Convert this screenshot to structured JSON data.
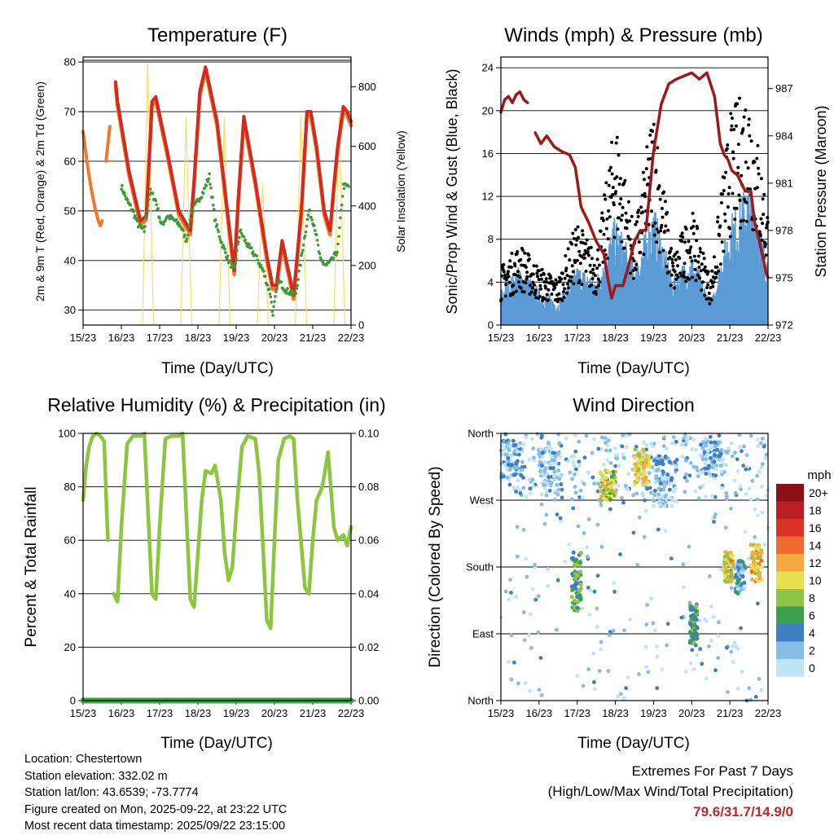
{
  "panels": {
    "temperature": {
      "title": "Temperature (F)",
      "ylabel": "2m & 9m T (Red, Orange) & 2m Td (Green)",
      "y2label": "Solar Insolation (Yellow)",
      "xlabel": "Time (Day/UTC)"
    },
    "winds": {
      "title": "Winds (mph) & Pressure (mb)",
      "ylabel": "Sonic/Prop Wind & Gust (Blue, Black)",
      "y2label": "Station Pressure (Maroon)",
      "xlabel": "Time (Day/UTC)"
    },
    "humidity": {
      "title": "Relative Humidity (%) & Precipitation (in)",
      "ylabel": "Percent & Total Rainfall",
      "xlabel": "Time (Day/UTC)"
    },
    "direction": {
      "title": "Wind Direction",
      "ylabel": "Direction (Colored By Speed)",
      "xlabel": "Time (Day/UTC)",
      "legend_title": "mph"
    }
  },
  "colors": {
    "t2m": "#d42a1e",
    "t9m": "#f07a2c",
    "dewpoint": "#3a9a35",
    "solar": "#f7dc6a",
    "wind": "#5b9bd5",
    "gust": "#000000",
    "pressure": "#9c1a1a",
    "rh": "#8cc63f",
    "precip": "#3aa23a"
  },
  "info": {
    "location": "Location: Chestertown",
    "elevation": "Station elevation: 332.02 m",
    "latlon": "Station lat/lon: 43.6539; -73.7774",
    "created": "Figure created on Mon, 2025-09-22, at 23:22 UTC",
    "timestamp": "Most recent data timestamp: 2025/09/22 23:15:00"
  },
  "extremes": {
    "title": "Extremes For Past 7 Days",
    "subtitle": "(High/Low/Max Wind/Total Precipitation)",
    "values": "79.6/31.7/14.9/0"
  },
  "chart_data": [
    {
      "type": "line",
      "title": "Temperature (F)",
      "xlabel": "Time (Day/UTC)",
      "ylabel": "2m & 9m T (Red, Orange) & 2m Td (Green)",
      "y2label": "Solar Insolation (Yellow)",
      "x_ticks": [
        "15/23",
        "16/23",
        "17/23",
        "18/23",
        "19/23",
        "20/23",
        "21/23",
        "22/23"
      ],
      "xlim": [
        0,
        7
      ],
      "ylim": [
        27,
        81
      ],
      "y_ticks": [
        30,
        40,
        50,
        60,
        70,
        80
      ],
      "y2lim": [
        0,
        900
      ],
      "y2_ticks": [
        0,
        200,
        400,
        600,
        800
      ],
      "series": [
        {
          "name": "9m T (Orange)",
          "axis": "y",
          "segments": [
            {
              "x": [
                0,
                0.1,
                0.2,
                0.3,
                0.4,
                0.45,
                0.5
              ],
              "values": [
                66,
                60,
                55,
                51,
                48,
                47,
                48
              ]
            },
            {
              "x": [
                0.6,
                0.7
              ],
              "values": [
                60,
                67
              ]
            }
          ]
        },
        {
          "name": "2m T (Red)",
          "axis": "y",
          "segments": [
            {
              "x": [
                0.85,
                0.9,
                1.2,
                1.5,
                1.65,
                1.8,
                1.9,
                2.2,
                2.5,
                2.8,
                2.9,
                3.05,
                3.2,
                3.5,
                3.8,
                3.95,
                4.05,
                4.2,
                4.5,
                4.8,
                4.95,
                5.05,
                5.2,
                5.5,
                5.7,
                5.85,
                5.95,
                6.1,
                6.3,
                6.45,
                6.55,
                6.65,
                6.8,
                6.9,
                7.0
              ],
              "values": [
                76,
                72,
                58,
                48,
                49,
                72,
                73,
                62,
                50,
                46,
                56,
                74,
                79,
                68,
                48,
                38,
                52,
                69,
                56,
                41,
                35,
                35,
                44,
                33,
                50,
                70,
                70,
                63,
                50,
                46,
                55,
                63,
                71,
                70,
                68
              ]
            }
          ]
        },
        {
          "name": "2m Td (Green)",
          "axis": "y",
          "segments": [
            {
              "x": [
                1.0,
                1.15,
                1.3,
                1.45,
                1.6,
                1.75,
                1.9,
                2.05,
                2.2,
                2.4,
                2.55,
                2.7,
                2.85,
                3.0,
                3.15,
                3.3,
                3.45,
                3.6,
                3.8,
                3.95,
                4.1,
                4.3,
                4.5,
                4.7,
                4.9,
                4.95,
                5.1,
                5.3,
                5.55,
                5.75,
                5.9,
                6.05,
                6.2,
                6.35,
                6.5,
                6.65,
                6.8,
                6.95
              ],
              "values": [
                55,
                52,
                50,
                47,
                46,
                54,
                52,
                47,
                49,
                48,
                47,
                44,
                50,
                52,
                54,
                57,
                48,
                44,
                40,
                38,
                46,
                43,
                41,
                38,
                33,
                29,
                36,
                34,
                33,
                43,
                50,
                47,
                40,
                39,
                40,
                42,
                55,
                55
              ]
            }
          ]
        },
        {
          "name": "Solar Insolation (Yellow)",
          "axis": "y2",
          "peaks": [
            {
              "start": 0.55,
              "peak": 0.69,
              "end": 0.84,
              "value": 0
            },
            {
              "start": 1.55,
              "peak": 1.69,
              "end": 1.84,
              "value": 880
            },
            {
              "start": 2.55,
              "peak": 2.69,
              "end": 2.84,
              "value": 700
            },
            {
              "start": 3.55,
              "peak": 3.69,
              "end": 3.84,
              "value": 700
            },
            {
              "start": 4.55,
              "peak": 4.69,
              "end": 4.84,
              "value": 470
            },
            {
              "start": 5.55,
              "peak": 5.69,
              "end": 5.84,
              "value": 700
            },
            {
              "start": 6.55,
              "peak": 6.69,
              "end": 6.84,
              "value": 700
            }
          ]
        }
      ]
    },
    {
      "type": "line",
      "title": "Winds (mph) & Pressure (mb)",
      "xlabel": "Time (Day/UTC)",
      "ylabel": "Sonic/Prop Wind & Gust (Blue, Black)",
      "y2label": "Station Pressure (Maroon)",
      "x_ticks": [
        "15/23",
        "16/23",
        "17/23",
        "18/23",
        "19/23",
        "20/23",
        "21/23",
        "22/23"
      ],
      "xlim": [
        0,
        7
      ],
      "ylim": [
        0,
        25
      ],
      "y_ticks": [
        0,
        4,
        8,
        12,
        16,
        20,
        24
      ],
      "y2lim": [
        972,
        989
      ],
      "y2_ticks": [
        972,
        975,
        978,
        981,
        984,
        987
      ],
      "series": [
        {
          "name": "Station Pressure (Maroon)",
          "axis": "y2",
          "segments": [
            {
              "x": [
                0,
                0.1,
                0.2,
                0.3,
                0.4,
                0.5,
                0.6,
                0.7
              ],
              "values": [
                985.5,
                986.3,
                986.5,
                986.1,
                986.6,
                986.8,
                986.3,
                986.1
              ]
            },
            {
              "x": [
                0.9,
                1.05,
                1.2,
                1.4,
                1.6,
                1.8,
                1.95,
                2.1,
                2.3,
                2.5,
                2.7,
                2.8,
                2.9,
                3.0,
                3.2,
                3.35,
                3.5,
                3.65,
                3.8,
                4.0,
                4.2,
                4.4,
                4.6,
                4.8,
                5.0,
                5.2,
                5.4,
                5.6,
                5.75,
                5.85,
                5.95,
                6.05,
                6.2,
                6.4,
                6.55,
                6.65,
                6.75,
                6.85,
                6.95,
                7.0
              ],
              "values": [
                984.2,
                983.5,
                984.0,
                983.3,
                983.0,
                982.8,
                982.0,
                979.5,
                978.5,
                977.3,
                976.5,
                975.0,
                973.7,
                974.5,
                974.5,
                975.8,
                977.3,
                978.0,
                978.0,
                983.0,
                986.0,
                987.3,
                987.6,
                987.8,
                988.0,
                987.6,
                988.0,
                986.5,
                983.5,
                982.8,
                982.5,
                981.8,
                981.5,
                980.5,
                980.5,
                978.5,
                977.5,
                976.5,
                975.3,
                975.0
              ]
            }
          ]
        },
        {
          "name": "Sonic/Prop Wind (Blue)",
          "axis": "y",
          "envelope": {
            "x": [
              0,
              0.5,
              1.0,
              1.5,
              2.0,
              2.5,
              3.0,
              3.5,
              4.0,
              4.5,
              5.0,
              5.5,
              6.0,
              6.5,
              7.0
            ],
            "values": [
              3,
              5,
              3,
              2,
              5,
              4,
              9,
              5,
              10,
              4,
              6,
              2,
              9,
              12,
              6
            ]
          }
        },
        {
          "name": "Gust (Black)",
          "axis": "y",
          "envelope": {
            "x": [
              0,
              0.5,
              1.0,
              1.5,
              2.0,
              2.5,
              3.0,
              3.5,
              4.0,
              4.5,
              5.0,
              5.5,
              6.0,
              6.5,
              7.0
            ],
            "values": [
              5,
              7,
              5,
              4,
              9,
              6,
              18,
              8,
              19,
              6,
              10,
              4,
              18,
              21,
              10
            ]
          }
        }
      ]
    },
    {
      "type": "line",
      "title": "Relative Humidity (%) & Precipitation (in)",
      "xlabel": "Time (Day/UTC)",
      "ylabel": "Percent & Total Rainfall",
      "x_ticks": [
        "15/23",
        "16/23",
        "17/23",
        "18/23",
        "19/23",
        "20/23",
        "21/23",
        "22/23"
      ],
      "xlim": [
        0,
        7
      ],
      "ylim": [
        0,
        100
      ],
      "y_ticks": [
        0,
        20,
        40,
        60,
        80,
        100
      ],
      "y2lim": [
        0,
        0.1
      ],
      "y2_ticks": [
        "0.00",
        "0.02",
        "0.04",
        "0.06",
        "0.08",
        "0.10"
      ],
      "series": [
        {
          "name": "Relative Humidity",
          "axis": "y",
          "segments": [
            {
              "x": [
                0,
                0.08,
                0.16,
                0.25,
                0.35,
                0.45,
                0.55,
                0.62,
                0.65
              ],
              "values": [
                75,
                88,
                95,
                99,
                100,
                99,
                97,
                70,
                60
              ]
            },
            {
              "x": [
                0.8,
                0.9,
                1.0,
                1.15,
                1.3,
                1.5,
                1.6,
                1.8,
                1.9,
                2.0,
                2.15,
                2.3,
                2.5,
                2.6,
                2.8,
                2.9,
                3.0,
                3.1,
                3.2,
                3.35,
                3.45,
                3.6,
                3.7,
                3.8,
                3.9,
                4.0,
                4.15,
                4.3,
                4.5,
                4.6,
                4.8,
                4.9,
                5.0,
                5.1,
                5.25,
                5.4,
                5.5,
                5.6,
                5.8,
                5.9,
                6.0,
                6.1,
                6.25,
                6.4,
                6.55,
                6.65,
                6.8,
                6.9,
                7.0
              ],
              "values": [
                40,
                37,
                65,
                96,
                99,
                99,
                100,
                40,
                38,
                65,
                98,
                99,
                99,
                100,
                38,
                35,
                55,
                75,
                86,
                85,
                88,
                75,
                55,
                45,
                50,
                70,
                95,
                99,
                98,
                85,
                30,
                27,
                60,
                90,
                98,
                99,
                98,
                75,
                42,
                40,
                60,
                75,
                80,
                93,
                65,
                60,
                62,
                58,
                65
              ]
            }
          ]
        },
        {
          "name": "Total Precipitation",
          "axis": "y2",
          "x": [
            0,
            7
          ],
          "values": [
            0,
            0
          ]
        }
      ]
    },
    {
      "type": "scatter",
      "title": "Wind Direction",
      "xlabel": "Time (Day/UTC)",
      "ylabel": "Direction (Colored By Speed)",
      "x_ticks": [
        "15/23",
        "16/23",
        "17/23",
        "18/23",
        "19/23",
        "20/23",
        "21/23",
        "22/23"
      ],
      "xlim": [
        0,
        7
      ],
      "y_ticks": [
        "North",
        "East",
        "South",
        "West",
        "North"
      ],
      "ylim": [
        0,
        360
      ],
      "legend": {
        "title": "mph",
        "labels": [
          "0",
          "2",
          "4",
          "6",
          "8",
          "10",
          "12",
          "14",
          "16",
          "18",
          "20+"
        ],
        "colors": [
          "#bfe3f7",
          "#86bde8",
          "#3f7fc1",
          "#3d9e4d",
          "#8fc447",
          "#e9e050",
          "#f7a941",
          "#f06a2e",
          "#d93226",
          "#b81f22",
          "#8b1116"
        ]
      },
      "clusters": [
        {
          "x": [
            0.0,
            0.6
          ],
          "dir": [
            300,
            350
          ],
          "speed": 3
        },
        {
          "x": [
            1.0,
            1.6
          ],
          "dir": [
            290,
            340
          ],
          "speed": 2
        },
        {
          "x": [
            1.85,
            2.1
          ],
          "dir": [
            120,
            200
          ],
          "speed": 7
        },
        {
          "x": [
            2.6,
            3.0
          ],
          "dir": [
            270,
            310
          ],
          "speed": 10
        },
        {
          "x": [
            3.5,
            3.9
          ],
          "dir": [
            290,
            340
          ],
          "speed": 11
        },
        {
          "x": [
            4.0,
            4.6
          ],
          "dir": [
            260,
            330
          ],
          "speed": 3
        },
        {
          "x": [
            4.95,
            5.15
          ],
          "dir": [
            70,
            130
          ],
          "speed": 6
        },
        {
          "x": [
            5.2,
            5.8
          ],
          "dir": [
            300,
            350
          ],
          "speed": 3
        },
        {
          "x": [
            5.85,
            6.1
          ],
          "dir": [
            160,
            200
          ],
          "speed": 12
        },
        {
          "x": [
            6.15,
            6.4
          ],
          "dir": [
            140,
            190
          ],
          "speed": 4
        },
        {
          "x": [
            6.55,
            6.85
          ],
          "dir": [
            160,
            210
          ],
          "speed": 12
        }
      ]
    }
  ]
}
